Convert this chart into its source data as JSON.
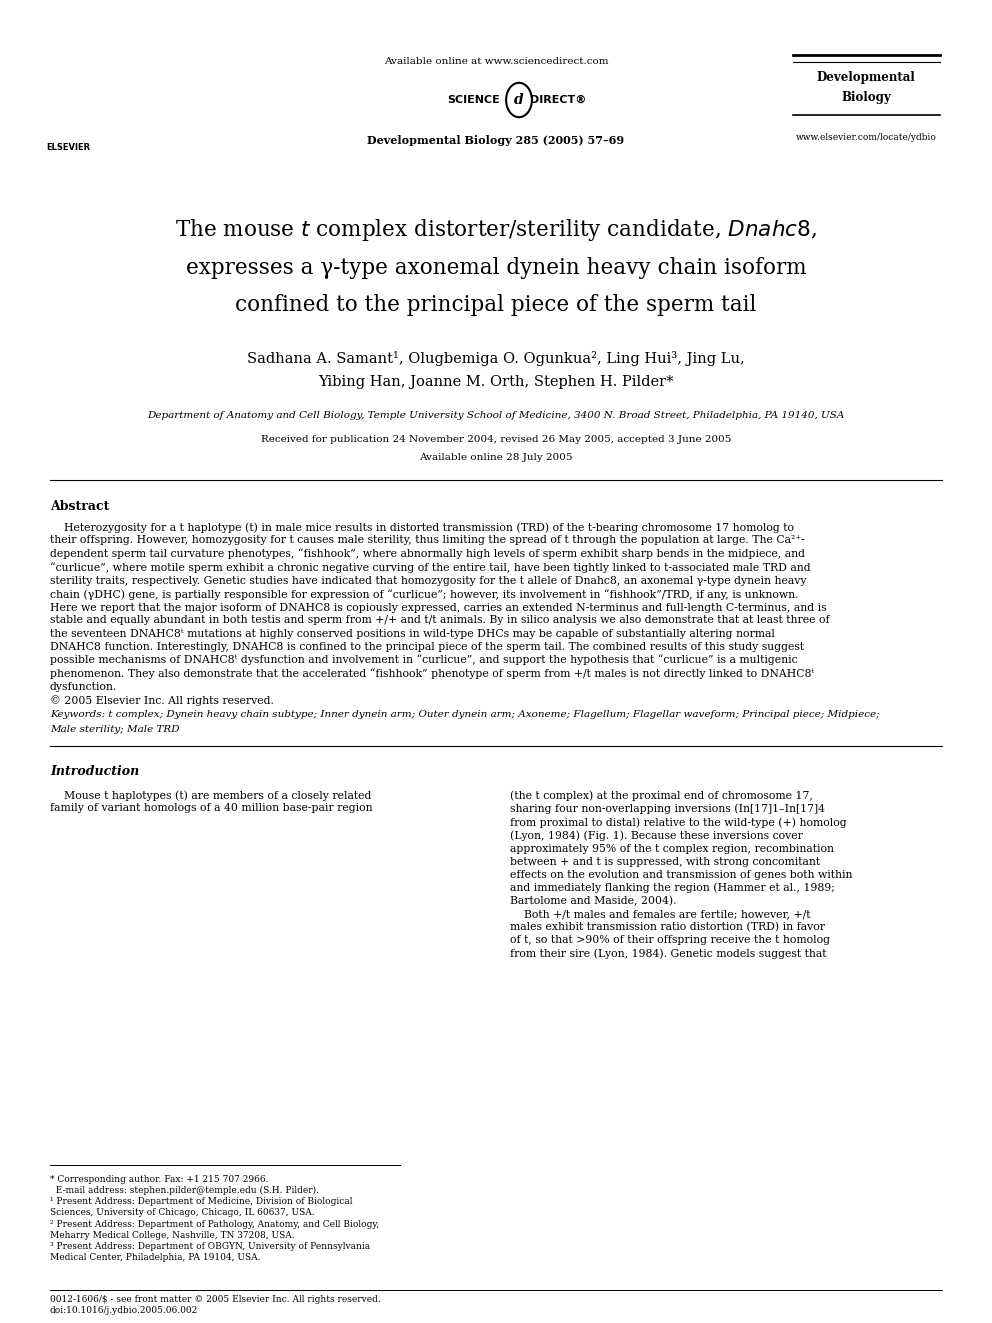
{
  "bg_color": "#ffffff",
  "page_width": 9.92,
  "page_height": 13.23,
  "header": {
    "available_online": "Available online at www.sciencedirect.com",
    "journal_info": "Developmental Biology 285 (2005) 57–69",
    "journal_name_line1": "Developmental",
    "journal_name_line2": "Biology",
    "website": "www.elsevier.com/locate/ydbio"
  },
  "title_line1": "The mouse  ᴛ  complex distorter/sterility candidate,  ᴇɴɐʜγ8 ,",
  "title_line1_plain": "The mouse ",
  "title_line1_t": "t",
  "title_line1_rest": " complex distorter/sterility candidate, ",
  "title_line1_italic": "Dnahc8",
  "title_line1_end": ",",
  "title_line2": "expresses a γ-type axonemal dynein heavy chain isoform",
  "title_line3": "confined to the principal piece of the sperm tail",
  "authors_line1": "Sadhana A. Samant¹, Olugbemiga O. Ogunkua², Ling Hui³, Jing Lu,",
  "authors_line2": "Yibing Han, Joanne M. Orth, Stephen H. Pilder*",
  "affiliation": "Department of Anatomy and Cell Biology, Temple University School of Medicine, 3400 N. Broad Street, Philadelphia, PA 19140, USA",
  "received": "Received for publication 24 November 2004, revised 26 May 2005, accepted 3 June 2005",
  "available": "Available online 28 July 2005",
  "abstract_heading": "Abstract",
  "abstract_text": "    Heterozygosity for a t haplotype (t) in male mice results in distorted transmission (TRD) of the t-bearing chromosome 17 homolog to their offspring. However, homozygosity for t causes male sterility, thus limiting the spread of t through the population at large. The Ca²⁺-dependent sperm tail curvature phenotypes, “fishhook”, where abnormally high levels of sperm exhibit sharp bends in the midpiece, and “curlicue”, where motile sperm exhibit a chronic negative curving of the entire tail, have been tightly linked to t-associated male TRD and sterility traits, respectively. Genetic studies have indicated that homozygosity for the t allele of Dnahc8, an axonemal γ-type dynein heavy chain (γDHC) gene, is partially responsible for expression of “curlicue”; however, its involvement in “fishhook”/TRD, if any, is unknown. Here we report that the major isoform of DNAHC8 is copiously expressed, carries an extended N-terminus and full-length C-terminus, and is stable and equally abundant in both testis and sperm from +/+ and t/t animals. By in silico analysis we also demonstrate that at least three of the seventeen DNAHC8ᵗ mutations at highly conserved positions in wild-type DHCs may be capable of substantially altering normal DNAHC8 function. Interestingly, DNAHC8 is confined to the principal piece of the sperm tail. The combined results of this study suggest possible mechanisms of DNAHC8ᵗ dysfunction and involvement in “curlicue”, and support the hypothesis that “curlicue” is a multigenic phenomenon. They also demonstrate that the accelerated “fishhook” phenotype of sperm from +/t males is not directly linked to DNAHC8ᵗ dysfunction.",
  "copyright": "© 2005 Elsevier Inc. All rights reserved.",
  "keywords": "Keywords: t complex; Dynein heavy chain subtype; Inner dynein arm; Outer dynein arm; Axoneme; Flagellum; Flagellar waveform; Principal piece; Midpiece; Male sterility; Male TRD",
  "intro_heading": "Introduction",
  "intro_col1": "Mouse t haplotypes (t) are members of a closely related family of variant homologs of a 40 million base-pair region",
  "intro_col2": "(the t complex) at the proximal end of chromosome 17, sharing four non-overlapping inversions (In[17]1–In[17]4 from proximal to distal) relative to the wild-type (+) homolog (Lyon, 1984) (Fig. 1). Because these inversions cover approximately 95% of the t complex region, recombination between + and t is suppressed, with strong concomitant effects on the evolution and transmission of genes both within and immediately flanking the region (Hammer et al., 1989; Bartolome and Maside, 2004).\n    Both +/t males and females are fertile; however, +/t males exhibit transmission ratio distortion (TRD) in favor of t, so that >90% of their offspring receive the t homolog from their sire (Lyon, 1984). Genetic models suggest that",
  "footnotes": "* Corresponding author. Fax: +1 215 707 2966.\n  E-mail address: stephen.pilder@temple.edu (S.H. Pilder).\n¹ Present Address: Department of Medicine, Division of Biological Sciences, University of Chicago, Chicago, IL 60637, USA.\n² Present Address: Department of Pathology, Anatomy, and Cell Biology, Meharry Medical College, Nashville, TN 37208, USA.\n³ Present Address: Department of OBGYN, University of Pennsylvania Medical Center, Philadelphia, PA 19104, USA.",
  "bottom_left": "0012-1606/$ - see front matter © 2005 Elsevier Inc. All rights reserved.\ndoi:10.1016/j.ydbio.2005.06.002"
}
